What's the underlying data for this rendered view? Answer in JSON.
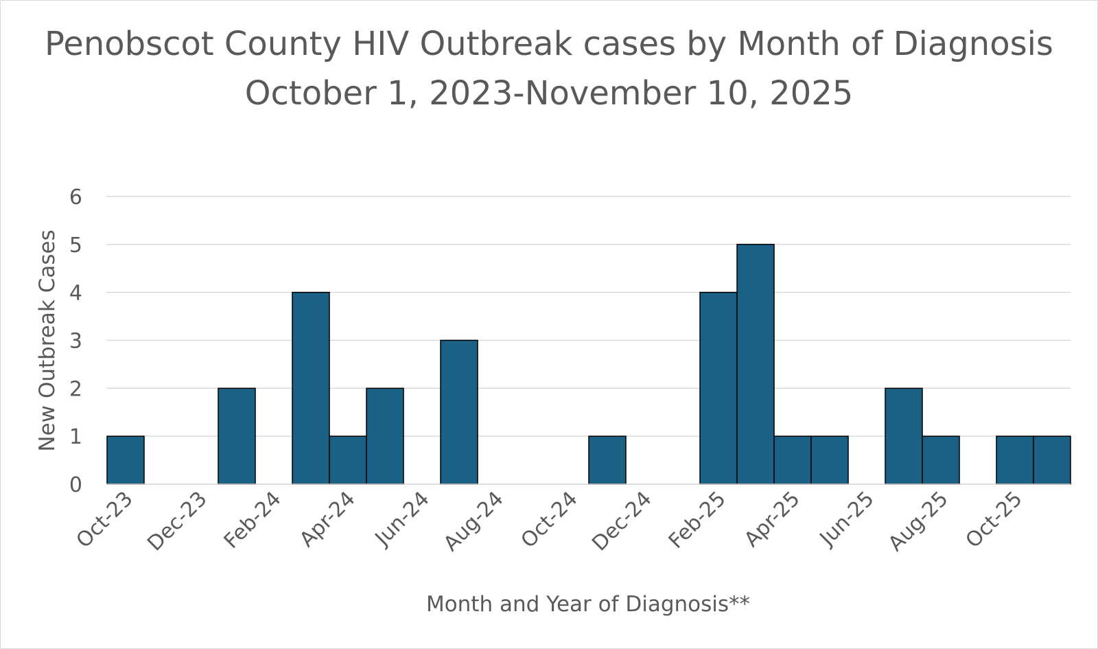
{
  "chart_data": {
    "type": "bar",
    "title": "Penobscot County HIV Outbreak cases by Month of Diagnosis",
    "subtitle": "October 1, 2023-November 10, 2025",
    "xlabel": "Month and Year of Diagnosis**",
    "ylabel": "New Outbreak Cases",
    "ylim": [
      0,
      6
    ],
    "yticks": [
      0,
      1,
      2,
      3,
      4,
      5,
      6
    ],
    "grid": true,
    "legend": "none",
    "bar_color": "#1a6185",
    "bar_edge_color": "#000000",
    "categories": [
      "Oct-23",
      "Nov-23",
      "Dec-23",
      "Jan-24",
      "Feb-24",
      "Mar-24",
      "Apr-24",
      "May-24",
      "Jun-24",
      "Jul-24",
      "Aug-24",
      "Sep-24",
      "Oct-24",
      "Nov-24",
      "Dec-24",
      "Jan-25",
      "Feb-25",
      "Mar-25",
      "Apr-25",
      "May-25",
      "Jun-25",
      "Jul-25",
      "Aug-25",
      "Sep-25",
      "Oct-25",
      "Nov-25"
    ],
    "tick_labels": [
      "Oct-23",
      "Dec-23",
      "Feb-24",
      "Apr-24",
      "Jun-24",
      "Aug-24",
      "Oct-24",
      "Dec-24",
      "Feb-25",
      "Apr-25",
      "Jun-25",
      "Aug-25",
      "Oct-25"
    ],
    "values": [
      1,
      0,
      0,
      2,
      0,
      4,
      1,
      2,
      0,
      3,
      0,
      0,
      0,
      1,
      0,
      0,
      4,
      5,
      1,
      1,
      0,
      2,
      1,
      0,
      1,
      1
    ]
  }
}
